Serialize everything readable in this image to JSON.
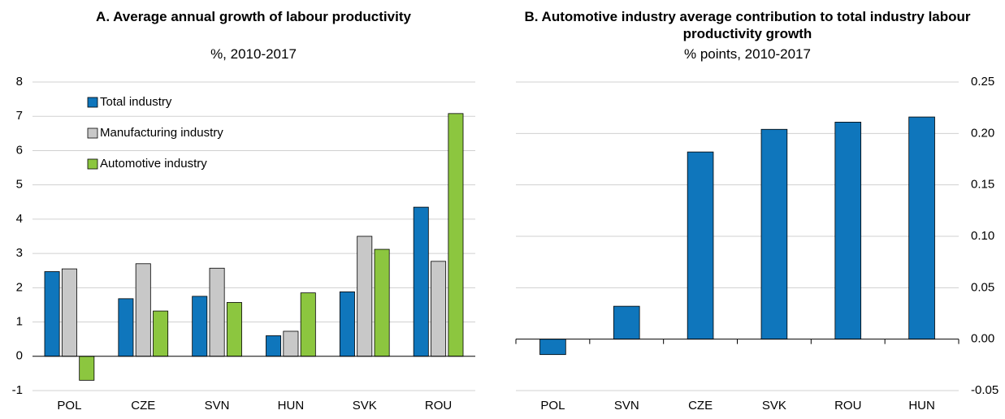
{
  "chart_data": [
    {
      "type": "bar",
      "title": "A. Average annual growth of labour productivity",
      "subtitle": "%, 2010-2017",
      "categories": [
        "POL",
        "CZE",
        "SVN",
        "HUN",
        "SVK",
        "ROU"
      ],
      "series": [
        {
          "name": "Total industry",
          "color": "#0f76bc",
          "values": [
            2.47,
            1.68,
            1.75,
            0.6,
            1.88,
            4.35
          ]
        },
        {
          "name": "Manufacturing industry",
          "color": "#c8c8c8",
          "values": [
            2.55,
            2.7,
            2.57,
            0.73,
            3.5,
            2.77
          ]
        },
        {
          "name": "Automotive industry",
          "color": "#8cc63f",
          "values": [
            -0.7,
            1.32,
            1.57,
            1.85,
            3.12,
            7.08
          ]
        }
      ],
      "ylim": [
        -1,
        8
      ],
      "yticks": [
        -1,
        0,
        1,
        2,
        3,
        4,
        5,
        6,
        7,
        8
      ],
      "grid": true,
      "legend": "upper left"
    },
    {
      "type": "bar",
      "title": "B. Automotive industry average contribution to total industry labour productivity growth",
      "subtitle": "% points, 2010-2017",
      "categories": [
        "POL",
        "SVN",
        "CZE",
        "SVK",
        "ROU",
        "HUN"
      ],
      "series": [
        {
          "name": null,
          "color": "#0f76bc",
          "values": [
            -0.015,
            0.032,
            0.182,
            0.204,
            0.211,
            0.216
          ],
          "axis": "y2"
        }
      ],
      "y2lim": [
        -0.05,
        0.25
      ],
      "y2ticks": [
        {
          "value": -0.05,
          "label": "-0.05"
        },
        {
          "value": 0,
          "label": "0.00"
        },
        {
          "value": 0.05,
          "label": "0.05"
        },
        {
          "value": 0.1,
          "label": "0.10"
        },
        {
          "value": 0.15,
          "label": "0.15"
        },
        {
          "value": 0.2,
          "label": "0.20"
        },
        {
          "value": 0.25,
          "label": "0.25"
        }
      ],
      "grid": true
    }
  ]
}
